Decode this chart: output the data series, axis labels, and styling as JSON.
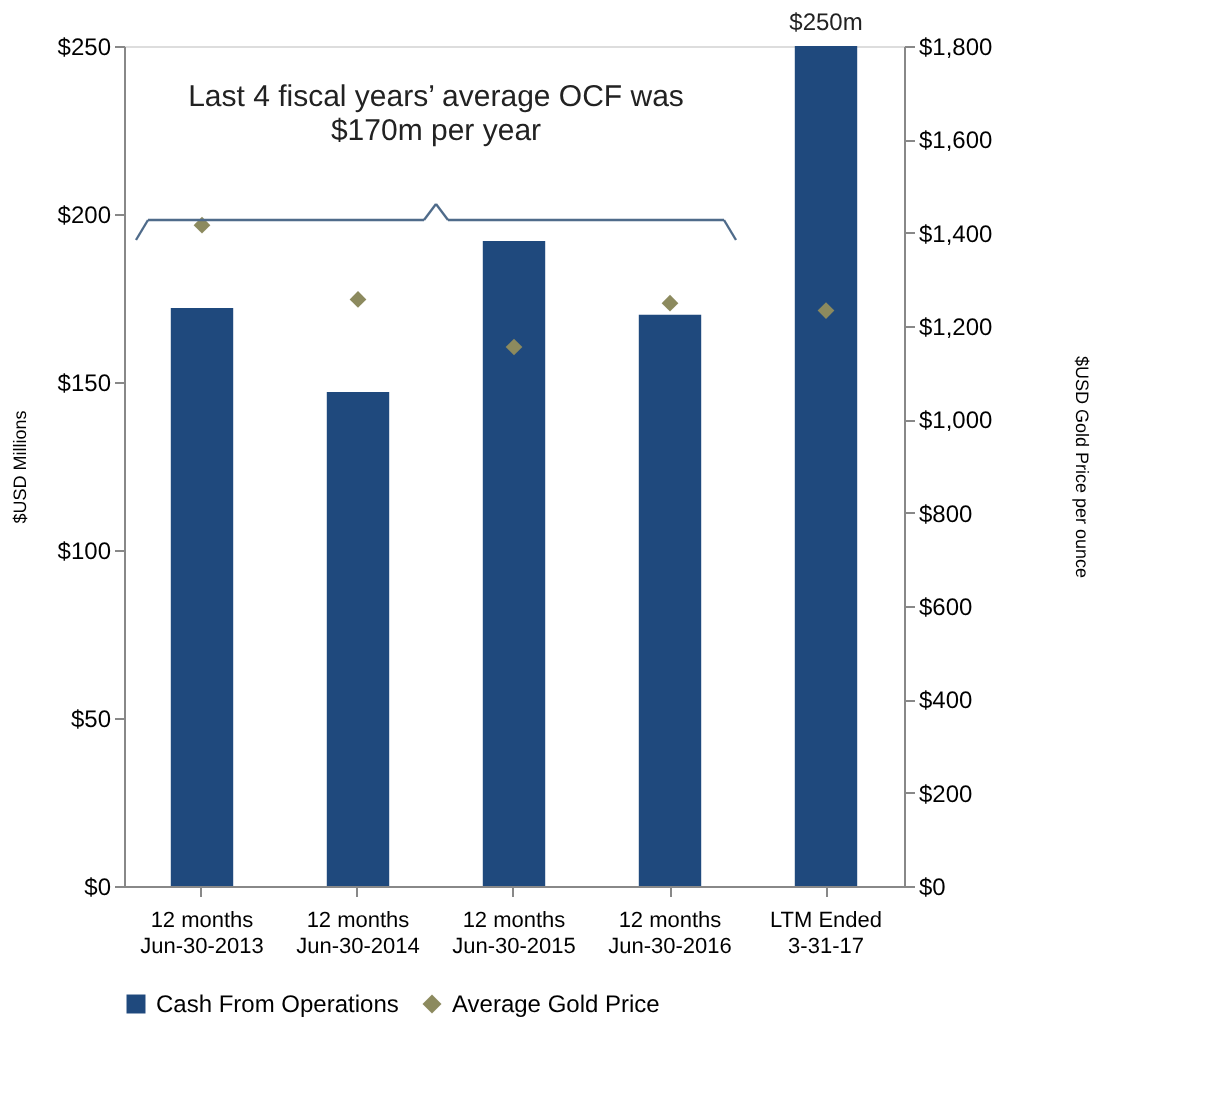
{
  "chart_data": {
    "type": "bar",
    "categories": [
      "12 months\nJun-30-2013",
      "12 months\nJun-30-2014",
      "12 months\nJun-30-2015",
      "12 months\nJun-30-2016",
      "LTM Ended\n3-31-17"
    ],
    "series": [
      {
        "name": "Cash From Operations",
        "color": "#1f497d",
        "values": [
          172,
          147,
          192,
          170,
          250
        ],
        "value_labels": [
          null,
          null,
          null,
          null,
          "$250m"
        ]
      },
      {
        "name": "Average Gold Price",
        "type": "scatter",
        "axis": "y2",
        "marker": "diamond",
        "color": "#8c8a5e",
        "values": [
          1416,
          1257,
          1155,
          1249,
          1233
        ]
      }
    ],
    "ylabel": "$USD Millions",
    "y2label": "$USD Gold Price per ounce",
    "ylim": [
      0,
      250
    ],
    "yticks": [
      {
        "value": 0,
        "label": "$0"
      },
      {
        "value": 50,
        "label": "$50"
      },
      {
        "value": 100,
        "label": "$100"
      },
      {
        "value": 150,
        "label": "$150"
      },
      {
        "value": 200,
        "label": "$200"
      },
      {
        "value": 250,
        "label": "$250"
      }
    ],
    "y2lim": [
      0,
      1800
    ],
    "y2ticks": [
      {
        "value": 0,
        "label": "$0"
      },
      {
        "value": 200,
        "label": "$200"
      },
      {
        "value": 400,
        "label": "$400"
      },
      {
        "value": 600,
        "label": "$600"
      },
      {
        "value": 800,
        "label": "$800"
      },
      {
        "value": 1000,
        "label": "$1,000"
      },
      {
        "value": 1200,
        "label": "$1,200"
      },
      {
        "value": 1400,
        "label": "$1,400"
      },
      {
        "value": 1600,
        "label": "$1,600"
      },
      {
        "value": 1800,
        "label": "$1,800"
      }
    ],
    "annotations": [
      "Last  4 fiscal years’ average OCF was\n$170m per year"
    ],
    "grid": false,
    "legend": "bottom"
  }
}
